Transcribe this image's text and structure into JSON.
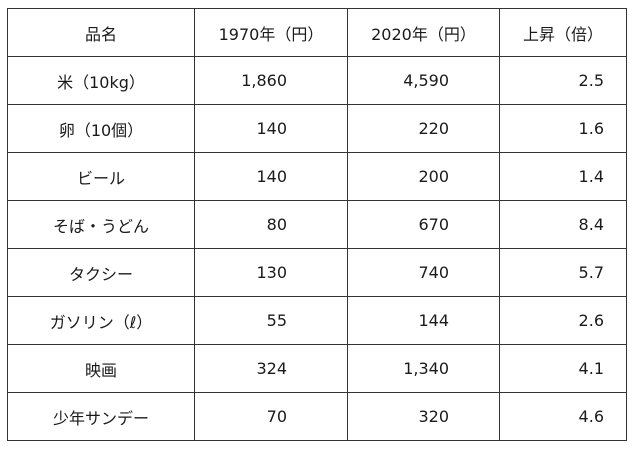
{
  "table": {
    "headers": [
      "品名",
      "1970年（円）",
      "2020年（円）",
      "上昇（倍）"
    ],
    "rows": [
      {
        "item": "米（10kg）",
        "price_1970": "1,860",
        "price_2020": "4,590",
        "ratio": "2.5"
      },
      {
        "item": "卵（10個）",
        "price_1970": "140",
        "price_2020": "220",
        "ratio": "1.6"
      },
      {
        "item": "ビール",
        "price_1970": "140",
        "price_2020": "200",
        "ratio": "1.4"
      },
      {
        "item": "そば・うどん",
        "price_1970": "80",
        "price_2020": "670",
        "ratio": "8.4"
      },
      {
        "item": "タクシー",
        "price_1970": "130",
        "price_2020": "740",
        "ratio": "5.7"
      },
      {
        "item": "ガソリン（ℓ）",
        "price_1970": "55",
        "price_2020": "144",
        "ratio": "2.6"
      },
      {
        "item": "映画",
        "price_1970": "324",
        "price_2020": "1,340",
        "ratio": "4.1"
      },
      {
        "item": "少年サンデー",
        "price_1970": "70",
        "price_2020": "320",
        "ratio": "4.6"
      }
    ]
  }
}
